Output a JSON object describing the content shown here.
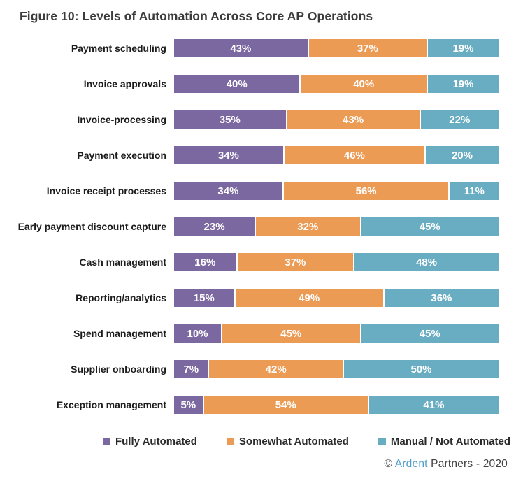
{
  "title": "Figure 10: Levels of Automation Across Core AP Operations",
  "chart_data": {
    "type": "bar",
    "orientation": "horizontal",
    "stacked": true,
    "normalized_to_full_width": true,
    "value_suffix": "%",
    "categories": [
      "Payment scheduling",
      "Invoice approvals",
      "Invoice-processing",
      "Payment execution",
      "Invoice receipt processes",
      "Early payment discount capture",
      "Cash management",
      "Reporting/analytics",
      "Spend management",
      "Supplier onboarding",
      "Exception management"
    ],
    "series": [
      {
        "name": "Fully Automated",
        "color": "#7c68a0",
        "values": [
          43,
          40,
          35,
          34,
          34,
          23,
          16,
          15,
          10,
          7,
          5
        ]
      },
      {
        "name": "Somewhat Automated",
        "color": "#ec9b55",
        "values": [
          37,
          40,
          43,
          46,
          56,
          32,
          37,
          49,
          45,
          42,
          54
        ]
      },
      {
        "name": "Manual / Not Automated",
        "color": "#69adc2",
        "values": [
          19,
          19,
          22,
          20,
          11,
          45,
          48,
          36,
          45,
          50,
          41
        ]
      }
    ],
    "legend_position": "bottom",
    "value_labels": "inside-white-bold",
    "grid": false
  },
  "footer": {
    "copyright_symbol": "©",
    "brand": "Ardent",
    "rest": " Partners - 2020"
  }
}
